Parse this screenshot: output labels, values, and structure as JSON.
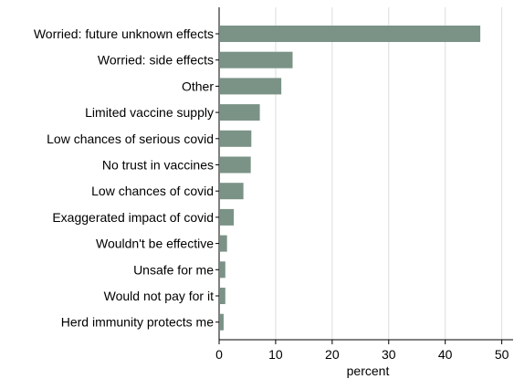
{
  "chart_data": {
    "type": "bar",
    "orientation": "horizontal",
    "categories": [
      "Worried: future unknown effects",
      "Worried: side effects",
      "Other",
      "Limited vaccine supply",
      "Low chances of serious covid",
      "No trust in vaccines",
      "Low chances of covid",
      "Exaggerated impact of covid",
      "Wouldn't be effective",
      "Unsafe for me",
      "Would not pay for it",
      "Herd immunity protects me"
    ],
    "values": [
      46.2,
      13.0,
      11.0,
      7.2,
      5.7,
      5.6,
      4.3,
      2.6,
      1.4,
      1.1,
      1.1,
      0.8
    ],
    "xlabel": "percent",
    "ylabel": "",
    "xlim": [
      0,
      52
    ],
    "xticks": [
      0,
      10,
      20,
      30,
      40,
      50
    ],
    "grid": true,
    "bar_color": "#7b9387",
    "grid_color": "#dddddd"
  }
}
